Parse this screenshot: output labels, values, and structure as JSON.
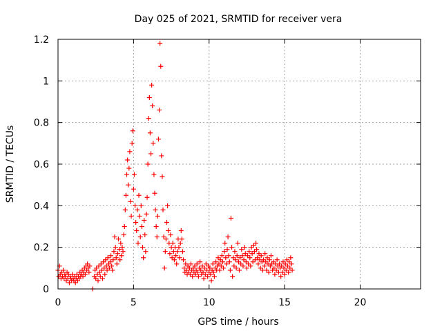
{
  "chart_data": {
    "type": "scatter",
    "title": "Day 025 of 2021, SRMTID for receiver vera",
    "xlabel": "GPS time / hours",
    "ylabel": "SRMTID / TECUs",
    "xlim": [
      0,
      24
    ],
    "ylim": [
      0,
      1.2
    ],
    "x_ticks": [
      0,
      5,
      10,
      15,
      20
    ],
    "x_tick_labels": [
      "0",
      "5",
      "10",
      "15",
      "20"
    ],
    "y_ticks": [
      0,
      0.2,
      0.4,
      0.6,
      0.8,
      1.0,
      1.2
    ],
    "y_tick_labels": [
      "0",
      "0.2",
      "0.4",
      "0.6",
      "0.8",
      "1",
      "1.2"
    ],
    "grid": true,
    "marker": "plus",
    "color": "#ff0000",
    "series": [
      {
        "name": "SRMTID",
        "points": [
          [
            0.0,
            0.09
          ],
          [
            0.05,
            0.06
          ],
          [
            0.1,
            0.11
          ],
          [
            0.15,
            0.07
          ],
          [
            0.2,
            0.05
          ],
          [
            0.25,
            0.08
          ],
          [
            0.3,
            0.06
          ],
          [
            0.35,
            0.09
          ],
          [
            0.4,
            0.05
          ],
          [
            0.45,
            0.07
          ],
          [
            0.5,
            0.06
          ],
          [
            0.55,
            0.04
          ],
          [
            0.6,
            0.08
          ],
          [
            0.65,
            0.05
          ],
          [
            0.7,
            0.07
          ],
          [
            0.75,
            0.03
          ],
          [
            0.8,
            0.06
          ],
          [
            0.85,
            0.05
          ],
          [
            0.9,
            0.04
          ],
          [
            0.95,
            0.07
          ],
          [
            1.0,
            0.05
          ],
          [
            1.05,
            0.04
          ],
          [
            1.1,
            0.06
          ],
          [
            1.15,
            0.03
          ],
          [
            1.2,
            0.05
          ],
          [
            1.25,
            0.07
          ],
          [
            1.3,
            0.04
          ],
          [
            1.35,
            0.06
          ],
          [
            1.4,
            0.05
          ],
          [
            1.45,
            0.08
          ],
          [
            1.5,
            0.06
          ],
          [
            1.55,
            0.07
          ],
          [
            1.6,
            0.09
          ],
          [
            1.65,
            0.06
          ],
          [
            1.7,
            0.08
          ],
          [
            1.75,
            0.1
          ],
          [
            1.8,
            0.07
          ],
          [
            1.85,
            0.11
          ],
          [
            1.9,
            0.09
          ],
          [
            1.95,
            0.12
          ],
          [
            2.0,
            0.1
          ],
          [
            2.05,
            0.08
          ],
          [
            2.1,
            0.11
          ],
          [
            2.3,
            0.0
          ],
          [
            2.4,
            0.06
          ],
          [
            2.45,
            0.09
          ],
          [
            2.5,
            0.05
          ],
          [
            2.55,
            0.1
          ],
          [
            2.6,
            0.07
          ],
          [
            2.65,
            0.04
          ],
          [
            2.7,
            0.11
          ],
          [
            2.75,
            0.08
          ],
          [
            2.8,
            0.06
          ],
          [
            2.85,
            0.12
          ],
          [
            2.9,
            0.09
          ],
          [
            2.95,
            0.05
          ],
          [
            3.0,
            0.13
          ],
          [
            3.05,
            0.1
          ],
          [
            3.1,
            0.07
          ],
          [
            3.15,
            0.14
          ],
          [
            3.2,
            0.11
          ],
          [
            3.25,
            0.09
          ],
          [
            3.3,
            0.15
          ],
          [
            3.35,
            0.12
          ],
          [
            3.4,
            0.1
          ],
          [
            3.45,
            0.13
          ],
          [
            3.5,
            0.16
          ],
          [
            3.55,
            0.11
          ],
          [
            3.6,
            0.09
          ],
          [
            3.65,
            0.14
          ],
          [
            3.7,
            0.18
          ],
          [
            3.75,
            0.25
          ],
          [
            3.8,
            0.2
          ],
          [
            3.85,
            0.15
          ],
          [
            3.9,
            0.12
          ],
          [
            3.95,
            0.17
          ],
          [
            4.0,
            0.24
          ],
          [
            4.05,
            0.19
          ],
          [
            4.1,
            0.14
          ],
          [
            4.15,
            0.22
          ],
          [
            4.2,
            0.16
          ],
          [
            4.25,
            0.2
          ],
          [
            4.3,
            0.18
          ],
          [
            4.35,
            0.26
          ],
          [
            4.4,
            0.3
          ],
          [
            4.45,
            0.38
          ],
          [
            4.5,
            0.45
          ],
          [
            4.55,
            0.55
          ],
          [
            4.6,
            0.62
          ],
          [
            4.65,
            0.5
          ],
          [
            4.7,
            0.58
          ],
          [
            4.75,
            0.66
          ],
          [
            4.8,
            0.42
          ],
          [
            4.85,
            0.35
          ],
          [
            4.9,
            0.7
          ],
          [
            4.95,
            0.76
          ],
          [
            5.0,
            0.48
          ],
          [
            5.05,
            0.55
          ],
          [
            5.1,
            0.4
          ],
          [
            5.15,
            0.32
          ],
          [
            5.2,
            0.28
          ],
          [
            5.25,
            0.38
          ],
          [
            5.3,
            0.22
          ],
          [
            5.35,
            0.45
          ],
          [
            5.4,
            0.35
          ],
          [
            5.45,
            0.25
          ],
          [
            5.5,
            0.4
          ],
          [
            5.55,
            0.3
          ],
          [
            5.6,
            0.2
          ],
          [
            5.65,
            0.15
          ],
          [
            5.7,
            0.33
          ],
          [
            5.75,
            0.26
          ],
          [
            5.8,
            0.18
          ],
          [
            5.85,
            0.36
          ],
          [
            5.9,
            0.44
          ],
          [
            5.95,
            0.6
          ],
          [
            6.0,
            0.82
          ],
          [
            6.05,
            0.92
          ],
          [
            6.1,
            0.75
          ],
          [
            6.15,
            0.65
          ],
          [
            6.2,
            0.98
          ],
          [
            6.25,
            0.88
          ],
          [
            6.3,
            0.7
          ],
          [
            6.35,
            0.55
          ],
          [
            6.4,
            0.46
          ],
          [
            6.45,
            0.38
          ],
          [
            6.5,
            0.3
          ],
          [
            6.55,
            0.25
          ],
          [
            6.6,
            0.35
          ],
          [
            6.65,
            0.72
          ],
          [
            6.7,
            0.86
          ],
          [
            6.75,
            1.18
          ],
          [
            6.8,
            1.07
          ],
          [
            6.85,
            0.64
          ],
          [
            6.9,
            0.54
          ],
          [
            6.95,
            0.38
          ],
          [
            7.0,
            0.25
          ],
          [
            7.05,
            0.1
          ],
          [
            7.1,
            0.18
          ],
          [
            7.15,
            0.24
          ],
          [
            7.2,
            0.32
          ],
          [
            7.25,
            0.4
          ],
          [
            7.3,
            0.28
          ],
          [
            7.35,
            0.22
          ],
          [
            7.4,
            0.17
          ],
          [
            7.45,
            0.26
          ],
          [
            7.5,
            0.2
          ],
          [
            7.55,
            0.15
          ],
          [
            7.6,
            0.22
          ],
          [
            7.65,
            0.18
          ],
          [
            7.7,
            0.14
          ],
          [
            7.75,
            0.2
          ],
          [
            7.8,
            0.16
          ],
          [
            7.85,
            0.12
          ],
          [
            7.9,
            0.18
          ],
          [
            7.95,
            0.24
          ],
          [
            8.0,
            0.2
          ],
          [
            8.05,
            0.15
          ],
          [
            8.1,
            0.22
          ],
          [
            8.15,
            0.28
          ],
          [
            8.2,
            0.24
          ],
          [
            8.25,
            0.18
          ],
          [
            8.3,
            0.14
          ],
          [
            8.35,
            0.1
          ],
          [
            8.4,
            0.08
          ],
          [
            8.45,
            0.12
          ],
          [
            8.5,
            0.09
          ],
          [
            8.55,
            0.07
          ],
          [
            8.6,
            0.11
          ],
          [
            8.65,
            0.08
          ],
          [
            8.7,
            0.1
          ],
          [
            8.75,
            0.07
          ],
          [
            8.8,
            0.12
          ],
          [
            8.85,
            0.09
          ],
          [
            8.9,
            0.06
          ],
          [
            8.95,
            0.1
          ],
          [
            9.0,
            0.08
          ],
          [
            9.05,
            0.11
          ],
          [
            9.1,
            0.07
          ],
          [
            9.15,
            0.09
          ],
          [
            9.2,
            0.12
          ],
          [
            9.25,
            0.08
          ],
          [
            9.3,
            0.06
          ],
          [
            9.35,
            0.1
          ],
          [
            9.4,
            0.13
          ],
          [
            9.45,
            0.09
          ],
          [
            9.5,
            0.07
          ],
          [
            9.55,
            0.11
          ],
          [
            9.6,
            0.08
          ],
          [
            9.65,
            0.05
          ],
          [
            9.7,
            0.1
          ],
          [
            9.75,
            0.07
          ],
          [
            9.8,
            0.12
          ],
          [
            9.85,
            0.09
          ],
          [
            9.9,
            0.06
          ],
          [
            9.95,
            0.11
          ],
          [
            10.0,
            0.08
          ],
          [
            10.05,
            0.1
          ],
          [
            10.1,
            0.07
          ],
          [
            10.15,
            0.04
          ],
          [
            10.2,
            0.09
          ],
          [
            10.25,
            0.12
          ],
          [
            10.3,
            0.08
          ],
          [
            10.35,
            0.06
          ],
          [
            10.4,
            0.1
          ],
          [
            10.45,
            0.13
          ],
          [
            10.5,
            0.09
          ],
          [
            10.55,
            0.11
          ],
          [
            10.6,
            0.15
          ],
          [
            10.65,
            0.12
          ],
          [
            10.7,
            0.09
          ],
          [
            10.75,
            0.14
          ],
          [
            10.8,
            0.11
          ],
          [
            10.85,
            0.16
          ],
          [
            10.9,
            0.13
          ],
          [
            10.95,
            0.1
          ],
          [
            11.0,
            0.18
          ],
          [
            11.05,
            0.22
          ],
          [
            11.1,
            0.15
          ],
          [
            11.15,
            0.12
          ],
          [
            11.2,
            0.19
          ],
          [
            11.25,
            0.25
          ],
          [
            11.3,
            0.16
          ],
          [
            11.35,
            0.13
          ],
          [
            11.4,
            0.09
          ],
          [
            11.45,
            0.34
          ],
          [
            11.5,
            0.2
          ],
          [
            11.55,
            0.06
          ],
          [
            11.6,
            0.15
          ],
          [
            11.65,
            0.11
          ],
          [
            11.7,
            0.18
          ],
          [
            11.75,
            0.14
          ],
          [
            11.8,
            0.1
          ],
          [
            11.85,
            0.16
          ],
          [
            11.9,
            0.22
          ],
          [
            11.95,
            0.13
          ],
          [
            12.0,
            0.09
          ],
          [
            12.05,
            0.15
          ],
          [
            12.1,
            0.12
          ],
          [
            12.15,
            0.19
          ],
          [
            12.2,
            0.16
          ],
          [
            12.25,
            0.11
          ],
          [
            12.3,
            0.14
          ],
          [
            12.35,
            0.2
          ],
          [
            12.4,
            0.17
          ],
          [
            12.45,
            0.13
          ],
          [
            12.5,
            0.1
          ],
          [
            12.55,
            0.16
          ],
          [
            12.6,
            0.12
          ],
          [
            12.65,
            0.18
          ],
          [
            12.7,
            0.15
          ],
          [
            12.75,
            0.11
          ],
          [
            12.8,
            0.2
          ],
          [
            12.85,
            0.17
          ],
          [
            12.9,
            0.13
          ],
          [
            12.95,
            0.21
          ],
          [
            13.0,
            0.18
          ],
          [
            13.05,
            0.14
          ],
          [
            13.1,
            0.22
          ],
          [
            13.15,
            0.19
          ],
          [
            13.2,
            0.15
          ],
          [
            13.25,
            0.12
          ],
          [
            13.3,
            0.17
          ],
          [
            13.35,
            0.14
          ],
          [
            13.4,
            0.1
          ],
          [
            13.45,
            0.16
          ],
          [
            13.5,
            0.13
          ],
          [
            13.55,
            0.09
          ],
          [
            13.6,
            0.14
          ],
          [
            13.65,
            0.11
          ],
          [
            13.7,
            0.17
          ],
          [
            13.75,
            0.13
          ],
          [
            13.8,
            0.09
          ],
          [
            13.85,
            0.15
          ],
          [
            13.9,
            0.12
          ],
          [
            13.95,
            0.08
          ],
          [
            14.0,
            0.14
          ],
          [
            14.05,
            0.11
          ],
          [
            14.1,
            0.16
          ],
          [
            14.15,
            0.12
          ],
          [
            14.2,
            0.09
          ],
          [
            14.25,
            0.13
          ],
          [
            14.3,
            0.1
          ],
          [
            14.35,
            0.07
          ],
          [
            14.4,
            0.12
          ],
          [
            14.45,
            0.09
          ],
          [
            14.5,
            0.14
          ],
          [
            14.55,
            0.11
          ],
          [
            14.6,
            0.08
          ],
          [
            14.65,
            0.12
          ],
          [
            14.7,
            0.1
          ],
          [
            14.75,
            0.06
          ],
          [
            14.8,
            0.11
          ],
          [
            14.85,
            0.08
          ],
          [
            14.9,
            0.13
          ],
          [
            14.95,
            0.1
          ],
          [
            15.0,
            0.07
          ],
          [
            15.05,
            0.12
          ],
          [
            15.1,
            0.09
          ],
          [
            15.15,
            0.14
          ],
          [
            15.2,
            0.11
          ],
          [
            15.25,
            0.08
          ],
          [
            15.3,
            0.13
          ],
          [
            15.35,
            0.1
          ],
          [
            15.4,
            0.15
          ],
          [
            15.45,
            0.12
          ],
          [
            15.5,
            0.09
          ]
        ]
      }
    ]
  }
}
